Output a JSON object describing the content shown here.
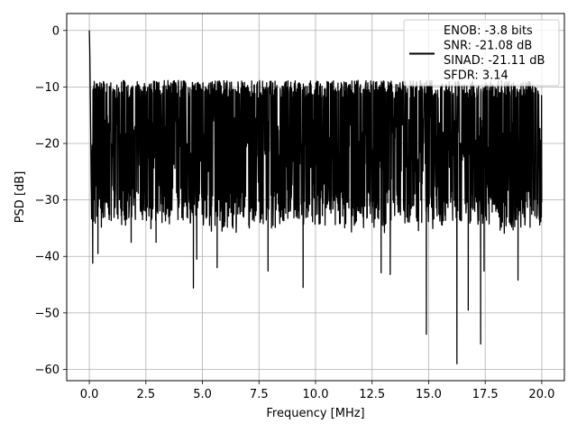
{
  "chart_data": {
    "type": "line",
    "title": "",
    "xlabel": "Frequency [MHz]",
    "ylabel": "PSD [dB]",
    "xlim": [
      -1.0,
      21.0
    ],
    "ylim": [
      -62,
      3
    ],
    "xticks": [
      0.0,
      2.5,
      5.0,
      7.5,
      10.0,
      12.5,
      15.0,
      17.5,
      20.0
    ],
    "xtick_labels": [
      "0.0",
      "2.5",
      "5.0",
      "7.5",
      "10.0",
      "12.5",
      "15.0",
      "17.5",
      "20.0"
    ],
    "yticks": [
      0,
      -10,
      -20,
      -30,
      -40,
      -50,
      -60
    ],
    "ytick_labels": [
      "0",
      "−10",
      "−20",
      "−30",
      "−40",
      "−50",
      "−60"
    ],
    "grid": true,
    "legend_position": "top-right",
    "legend_lines": [
      "ENOB: -3.8 bits",
      "SNR: -21.08 dB",
      "SINAD: -21.11 dB",
      "SFDR: 3.14"
    ],
    "series": [
      {
        "color": "#000000",
        "band": {
          "typical_low": -30,
          "typical_high": -12,
          "max_peak": -8.5,
          "mean": -20
        },
        "x_range": [
          0.0,
          20.0
        ],
        "start_points": [
          {
            "x": 0.0,
            "y": 0
          },
          {
            "x": 0.02,
            "y": -3.8
          },
          {
            "x": 0.05,
            "y": -14
          },
          {
            "x": 0.08,
            "y": -27
          }
        ],
        "dips": [
          {
            "x": 0.15,
            "y": -41.2
          },
          {
            "x": 0.38,
            "y": -39.5
          },
          {
            "x": 1.85,
            "y": -37.5
          },
          {
            "x": 2.95,
            "y": -37.5
          },
          {
            "x": 4.6,
            "y": -45.6
          },
          {
            "x": 4.75,
            "y": -40.5
          },
          {
            "x": 5.65,
            "y": -42.0
          },
          {
            "x": 7.9,
            "y": -42.6
          },
          {
            "x": 9.45,
            "y": -45.5
          },
          {
            "x": 12.9,
            "y": -42.9
          },
          {
            "x": 13.3,
            "y": -43.2
          },
          {
            "x": 14.9,
            "y": -53.8
          },
          {
            "x": 16.25,
            "y": -59.0
          },
          {
            "x": 16.75,
            "y": -49.5
          },
          {
            "x": 17.3,
            "y": -55.5
          },
          {
            "x": 17.45,
            "y": -42.6
          },
          {
            "x": 18.95,
            "y": -44.2
          }
        ]
      }
    ]
  }
}
